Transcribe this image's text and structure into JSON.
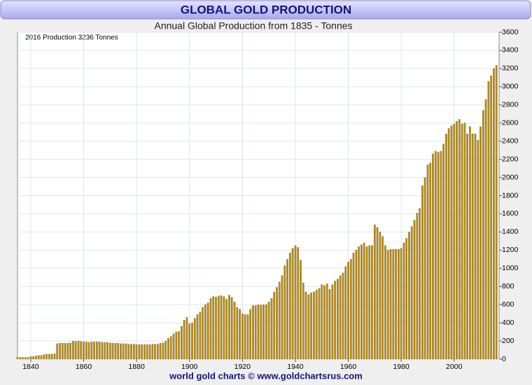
{
  "chart_data": {
    "type": "bar",
    "title": "GLOBAL GOLD PRODUCTION",
    "subtitle": "Annual Global Production from 1835 - Tonnes",
    "annotation": "2016  Production  3236  Tonnes",
    "footer": "world gold charts © www.goldchartsrus.com",
    "color": "#b08a22",
    "grid": true,
    "x": [
      1835,
      1836,
      1837,
      1838,
      1839,
      1840,
      1841,
      1842,
      1843,
      1844,
      1845,
      1846,
      1847,
      1848,
      1849,
      1850,
      1851,
      1852,
      1853,
      1854,
      1855,
      1856,
      1857,
      1858,
      1859,
      1860,
      1861,
      1862,
      1863,
      1864,
      1865,
      1866,
      1867,
      1868,
      1869,
      1870,
      1871,
      1872,
      1873,
      1874,
      1875,
      1876,
      1877,
      1878,
      1879,
      1880,
      1881,
      1882,
      1883,
      1884,
      1885,
      1886,
      1887,
      1888,
      1889,
      1890,
      1891,
      1892,
      1893,
      1894,
      1895,
      1896,
      1897,
      1898,
      1899,
      1900,
      1901,
      1902,
      1903,
      1904,
      1905,
      1906,
      1907,
      1908,
      1909,
      1910,
      1911,
      1912,
      1913,
      1914,
      1915,
      1916,
      1917,
      1918,
      1919,
      1920,
      1921,
      1922,
      1923,
      1924,
      1925,
      1926,
      1927,
      1928,
      1929,
      1930,
      1931,
      1932,
      1933,
      1934,
      1935,
      1936,
      1937,
      1938,
      1939,
      1940,
      1941,
      1942,
      1943,
      1944,
      1945,
      1946,
      1947,
      1948,
      1949,
      1950,
      1951,
      1952,
      1953,
      1954,
      1955,
      1956,
      1957,
      1958,
      1959,
      1960,
      1961,
      1962,
      1963,
      1964,
      1965,
      1966,
      1967,
      1968,
      1969,
      1970,
      1971,
      1972,
      1973,
      1974,
      1975,
      1976,
      1977,
      1978,
      1979,
      1980,
      1981,
      1982,
      1983,
      1984,
      1985,
      1986,
      1987,
      1988,
      1989,
      1990,
      1991,
      1992,
      1993,
      1994,
      1995,
      1996,
      1997,
      1998,
      1999,
      2000,
      2001,
      2002,
      2003,
      2004,
      2005,
      2006,
      2007,
      2008,
      2009,
      2010,
      2011,
      2012,
      2013,
      2014,
      2015,
      2016
    ],
    "values": [
      20,
      20,
      20,
      20,
      20,
      30,
      30,
      35,
      40,
      40,
      50,
      55,
      55,
      55,
      60,
      170,
      175,
      175,
      175,
      175,
      180,
      200,
      195,
      200,
      195,
      190,
      190,
      185,
      190,
      190,
      190,
      190,
      185,
      185,
      185,
      180,
      175,
      175,
      175,
      170,
      170,
      170,
      165,
      165,
      165,
      160,
      160,
      160,
      160,
      160,
      160,
      165,
      165,
      165,
      175,
      180,
      200,
      230,
      250,
      280,
      300,
      305,
      360,
      430,
      460,
      390,
      400,
      450,
      490,
      520,
      570,
      600,
      620,
      670,
      690,
      685,
      695,
      700,
      690,
      660,
      705,
      680,
      630,
      570,
      550,
      500,
      490,
      490,
      550,
      590,
      590,
      600,
      595,
      600,
      600,
      630,
      670,
      740,
      790,
      850,
      920,
      1030,
      1100,
      1170,
      1220,
      1250,
      1230,
      1090,
      840,
      740,
      710,
      730,
      740,
      760,
      780,
      820,
      810,
      830,
      770,
      820,
      860,
      880,
      920,
      950,
      1020,
      1070,
      1100,
      1170,
      1200,
      1240,
      1260,
      1280,
      1240,
      1250,
      1250,
      1480,
      1450,
      1400,
      1350,
      1250,
      1200,
      1210,
      1210,
      1210,
      1210,
      1220,
      1280,
      1330,
      1400,
      1460,
      1530,
      1610,
      1660,
      1910,
      2000,
      2140,
      2160,
      2260,
      2290,
      2280,
      2290,
      2370,
      2480,
      2540,
      2570,
      2590,
      2620,
      2640,
      2590,
      2600,
      2480,
      2560,
      2480,
      2480,
      2410,
      2560,
      2740,
      2860,
      3060,
      3120,
      3200,
      3236
    ],
    "xlim": [
      1835,
      2017
    ],
    "xticks": [
      1840,
      1860,
      1880,
      1900,
      1920,
      1940,
      1960,
      1980,
      2000
    ],
    "ylim": [
      0,
      3600
    ],
    "yticks": [
      0,
      200,
      400,
      600,
      800,
      1000,
      1200,
      1400,
      1600,
      1800,
      2000,
      2200,
      2400,
      2600,
      2800,
      3000,
      3200,
      3400,
      3600
    ]
  }
}
